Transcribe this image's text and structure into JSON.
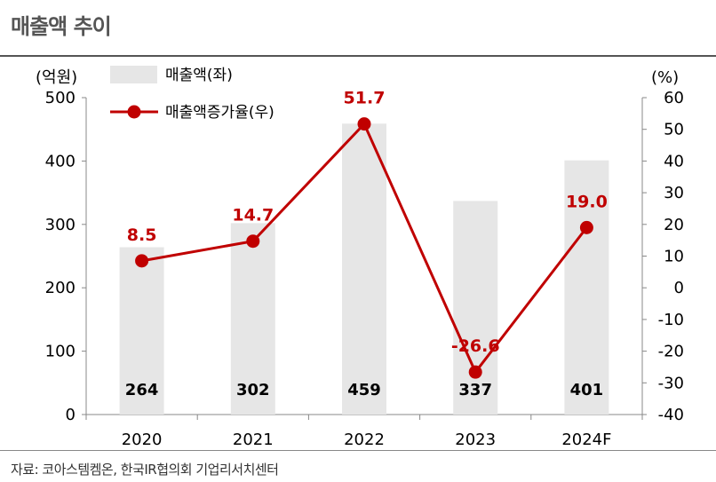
{
  "title": "매출액 추이",
  "source": "자료: 코아스템켐온, 한국IR협의회 기업리서치센터",
  "chart_data": {
    "type": "bar+line",
    "categories": [
      "2020",
      "2021",
      "2022",
      "2023",
      "2024F"
    ],
    "series": [
      {
        "name": "매출액(좌)",
        "type": "bar",
        "axis": "left",
        "values": [
          264,
          302,
          459,
          337,
          401
        ],
        "labels": [
          "264",
          "302",
          "459",
          "337",
          "401"
        ]
      },
      {
        "name": "매출액증가율(우)",
        "type": "line",
        "axis": "right",
        "values": [
          8.5,
          14.7,
          51.7,
          -26.6,
          19.0
        ],
        "labels": [
          "8.5",
          "14.7",
          "51.7",
          "-26.6",
          "19.0"
        ]
      }
    ],
    "left_axis": {
      "unit": "(억원)",
      "min": 0,
      "max": 500,
      "ticks": [
        "0",
        "100",
        "200",
        "300",
        "400",
        "500"
      ]
    },
    "right_axis": {
      "unit": "(%)",
      "min": -40,
      "max": 60,
      "ticks": [
        "-40",
        "-30",
        "-20",
        "-10",
        "0",
        "10",
        "20",
        "30",
        "40",
        "50",
        "60"
      ]
    },
    "grid": false,
    "legend_position": "top-left"
  },
  "colors": {
    "bar": "#e6e6e6",
    "line": "#c00000",
    "axis": "#888888",
    "title": "#555555"
  }
}
